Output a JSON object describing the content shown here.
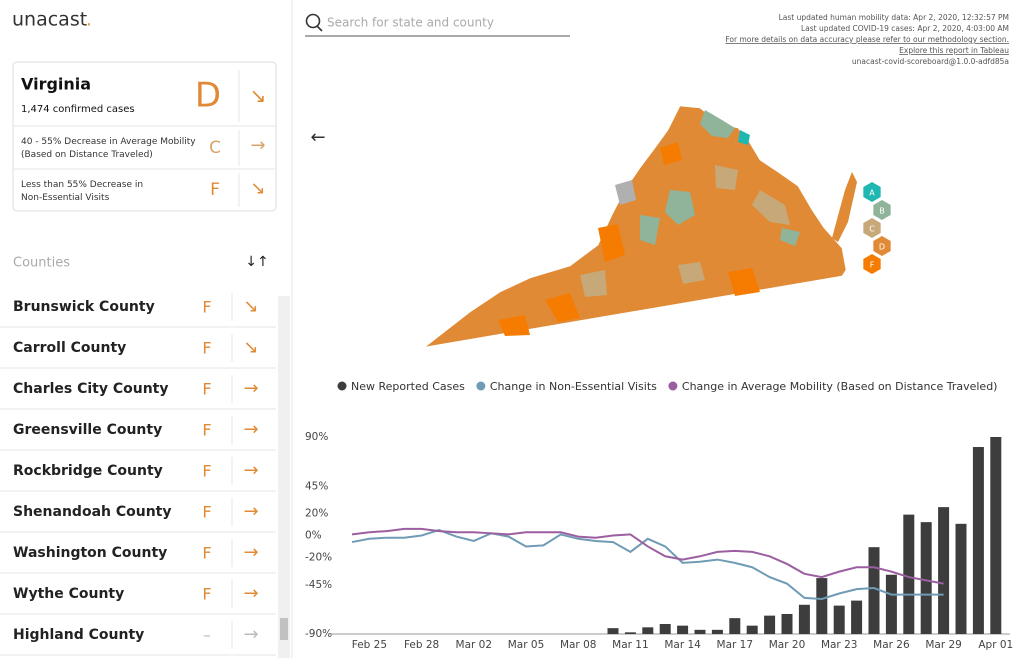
{
  "header": {
    "logo": "unacast",
    "logo_dot": ".",
    "search_placeholder": "Search for state and county",
    "info": [
      "Last updated human mobility data: Apr 2, 2020, 12:32:57 PM",
      "Last updated COVID-19 cases: Apr 2, 2020, 4:03:00 AM",
      "For more details on data accuracy please refer to our methodology section.",
      "Explore this report in Tableau",
      "unacast-covid-scoreboard@1.0.0-adfd85a"
    ]
  },
  "summary": {
    "state": "Virginia",
    "cases": "1,474 confirmed cases",
    "grade": "D",
    "trend": "↘",
    "metrics": [
      {
        "label": "40 - 55% Decrease in Average Mobility (Based on Distance Traveled)",
        "grade": "C",
        "trend": "→"
      },
      {
        "label": "Less than 55% Decrease in Non-Essential Visits",
        "grade": "F",
        "trend": "↘"
      }
    ]
  },
  "counties": {
    "title": "Counties",
    "sort_icon": "↓↑",
    "rows": [
      {
        "name": "Brunswick County",
        "grade": "F",
        "trend": "↘"
      },
      {
        "name": "Carroll County",
        "grade": "F",
        "trend": "↘"
      },
      {
        "name": "Charles City County",
        "grade": "F",
        "trend": "→"
      },
      {
        "name": "Greensville County",
        "grade": "F",
        "trend": "→"
      },
      {
        "name": "Rockbridge County",
        "grade": "F",
        "trend": "→"
      },
      {
        "name": "Shenandoah County",
        "grade": "F",
        "trend": "→"
      },
      {
        "name": "Washington County",
        "grade": "F",
        "trend": "→"
      },
      {
        "name": "Wythe County",
        "grade": "F",
        "trend": "→"
      },
      {
        "name": "Highland County",
        "grade": "–",
        "trend": "→"
      }
    ]
  },
  "map": {
    "back": "←",
    "legend": [
      {
        "label": "A",
        "color": "#1fb7b1"
      },
      {
        "label": "B",
        "color": "#8fb49a"
      },
      {
        "label": "C",
        "color": "#c7a878"
      },
      {
        "label": "D",
        "color": "#e08a35"
      },
      {
        "label": "F",
        "color": "#f57c00"
      }
    ]
  },
  "chart_data": {
    "type": "combo",
    "categories": [
      null,
      "Feb 25",
      null,
      null,
      "Feb 28",
      null,
      null,
      "Mar 02",
      null,
      null,
      "Mar 05",
      null,
      null,
      "Mar 08",
      null,
      null,
      "Mar 11",
      null,
      null,
      "Mar 14",
      null,
      null,
      "Mar 17",
      null,
      null,
      "Mar 20",
      null,
      null,
      "Mar 23",
      null,
      null,
      "Mar 26",
      null,
      null,
      "Mar 29",
      null,
      null,
      "Apr 01"
    ],
    "ylim": [
      -90,
      90
    ],
    "yticks": [
      {
        "value": 90,
        "label": "90%"
      },
      {
        "value": 45,
        "label": "45%"
      },
      {
        "value": 20,
        "label": "20%"
      },
      {
        "value": 0,
        "label": "0%"
      },
      {
        "value": -20,
        "label": "-20%"
      },
      {
        "value": -45,
        "label": "-45%"
      },
      {
        "value": -90,
        "label": "-90%"
      }
    ],
    "y2lim": [
      0,
      236
    ],
    "series": [
      {
        "name": "New Reported Cases",
        "color": "#3d3d3d",
        "kind": "bar",
        "axis": "y2",
        "values": [
          null,
          null,
          null,
          null,
          null,
          null,
          null,
          null,
          null,
          null,
          null,
          null,
          null,
          null,
          null,
          7,
          2,
          8,
          12,
          10,
          5,
          5,
          19,
          10,
          22,
          24,
          35,
          67,
          34,
          40,
          104,
          71,
          143,
          134,
          152,
          132,
          224,
          236
        ]
      },
      {
        "name": "Change in Non-Essential Visits",
        "color": "#6f9bb5",
        "kind": "line",
        "values": [
          -6,
          -3,
          -2,
          -2,
          0,
          5,
          -1,
          -5,
          2,
          -1,
          -10,
          -9,
          1,
          -3,
          -5,
          -6,
          -15,
          -3,
          -10,
          -25,
          -24,
          -22,
          -25,
          -29,
          -38,
          -44,
          -57,
          -58,
          -53,
          -49,
          -48,
          -54,
          -54,
          -54,
          -54,
          null,
          null,
          null
        ]
      },
      {
        "name": "Change in Average Mobility (Based on Distance Traveled)",
        "color": "#9b5fa0",
        "kind": "line",
        "values": [
          1,
          3,
          4,
          6,
          6,
          4,
          3,
          3,
          2,
          1,
          3,
          3,
          3,
          -1,
          -2,
          0,
          1,
          -10,
          -19,
          -22,
          -19,
          -15,
          -14,
          -15,
          -19,
          -26,
          -35,
          -38,
          -33,
          -29,
          -29,
          -33,
          -38,
          -41,
          -44,
          null,
          null,
          null
        ]
      }
    ]
  }
}
